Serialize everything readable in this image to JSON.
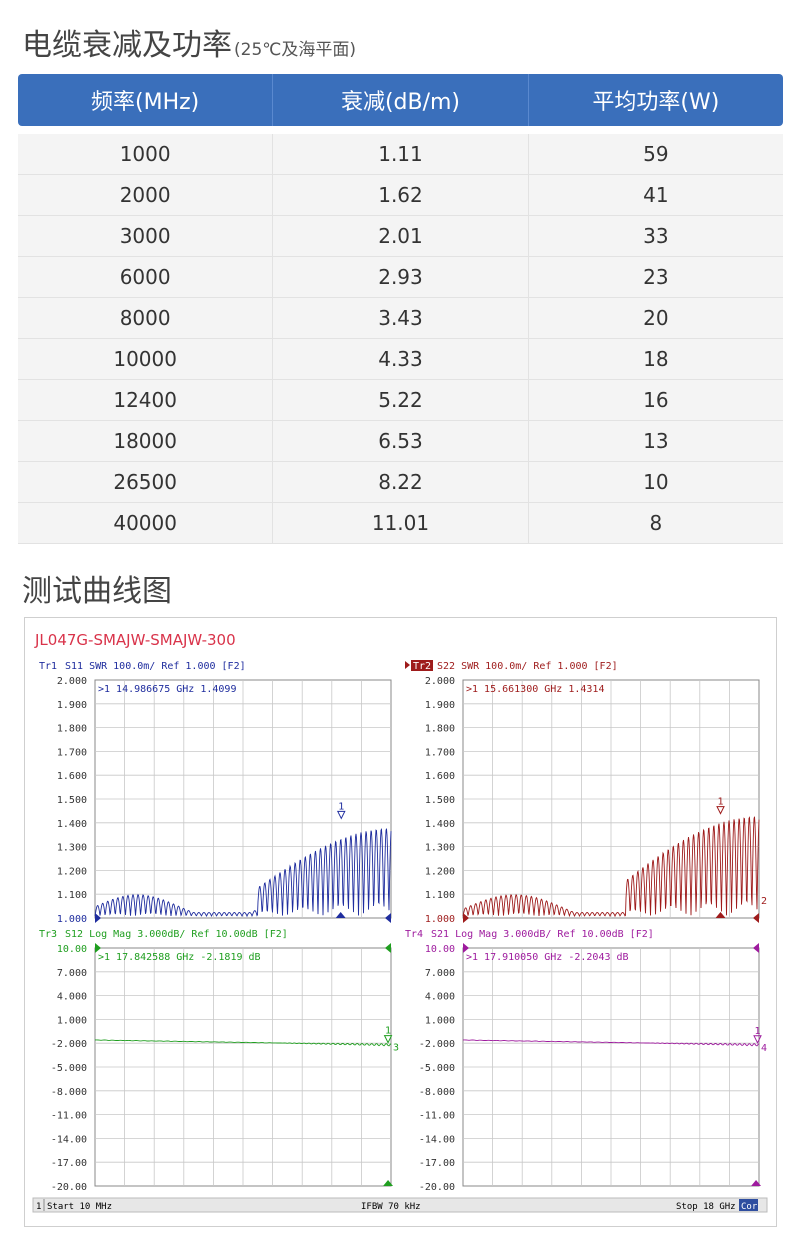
{
  "heading": {
    "title": "电缆衰减及功率",
    "subtitle": "(25℃及海平面)"
  },
  "table": {
    "headers": [
      "频率(MHz)",
      "衰减(dB/m)",
      "平均功率(W)"
    ],
    "rows": [
      [
        "1000",
        "1.11",
        "59"
      ],
      [
        "2000",
        "1.62",
        "41"
      ],
      [
        "3000",
        "2.01",
        "33"
      ],
      [
        "6000",
        "2.93",
        "23"
      ],
      [
        "8000",
        "3.43",
        "20"
      ],
      [
        "10000",
        "4.33",
        "18"
      ],
      [
        "12400",
        "5.22",
        "16"
      ],
      [
        "18000",
        "6.53",
        "13"
      ],
      [
        "26500",
        "8.22",
        "10"
      ],
      [
        "40000",
        "11.01",
        "8"
      ]
    ]
  },
  "section2": {
    "title": "测试曲线图"
  },
  "vna": {
    "model": "JL047G-SMAJW-SMAJW-300",
    "bottom_bar": {
      "channel": "1",
      "start": "Start 10 MHz",
      "ifbw": "IFBW 70 kHz",
      "stop": "Stop 18 GHz",
      "cor": "Cor"
    },
    "traces": [
      {
        "header_tag": "Tr1",
        "header": "S11 SWR 100.0m/ Ref 1.000 [F2]",
        "marker_text": ">1  14.986675 GHz  1.4099",
        "color": "#1f2d9e",
        "ticks": [
          "2.000",
          "1.900",
          "1.800",
          "1.700",
          "1.600",
          "1.500",
          "1.400",
          "1.300",
          "1.200",
          "1.100",
          "1.000"
        ],
        "marker_label": "1",
        "end_label": ""
      },
      {
        "header_tag": "Tr2",
        "header": "S22 SWR 100.0m/ Ref 1.000 [F2]",
        "marker_text": ">1  15.661300 GHz  1.4314",
        "color": "#9e1b1b",
        "ticks": [
          "2.000",
          "1.900",
          "1.800",
          "1.700",
          "1.600",
          "1.500",
          "1.400",
          "1.300",
          "1.200",
          "1.100",
          "1.000"
        ],
        "marker_label": "1",
        "end_label": "2"
      },
      {
        "header_tag": "Tr3",
        "header": "S12 Log Mag 3.000dB/ Ref 10.00dB [F2]",
        "marker_text": ">1  17.842588 GHz -2.1819 dB",
        "color": "#1f9e1f",
        "ticks": [
          "10.00",
          "7.000",
          "4.000",
          "1.000",
          "-2.000",
          "-5.000",
          "-8.000",
          "-11.00",
          "-14.00",
          "-17.00",
          "-20.00"
        ],
        "marker_label": "1",
        "end_label": "3"
      },
      {
        "header_tag": "Tr4",
        "header": "S21 Log Mag 3.000dB/ Ref 10.00dB [F2]",
        "marker_text": ">1  17.910050 GHz -2.2043 dB",
        "color": "#9e1b9e",
        "ticks": [
          "10.00",
          "7.000",
          "4.000",
          "1.000",
          "-2.000",
          "-5.000",
          "-8.000",
          "-11.00",
          "-14.00",
          "-17.00",
          "-20.00"
        ],
        "marker_label": "1",
        "end_label": "4"
      }
    ]
  }
}
